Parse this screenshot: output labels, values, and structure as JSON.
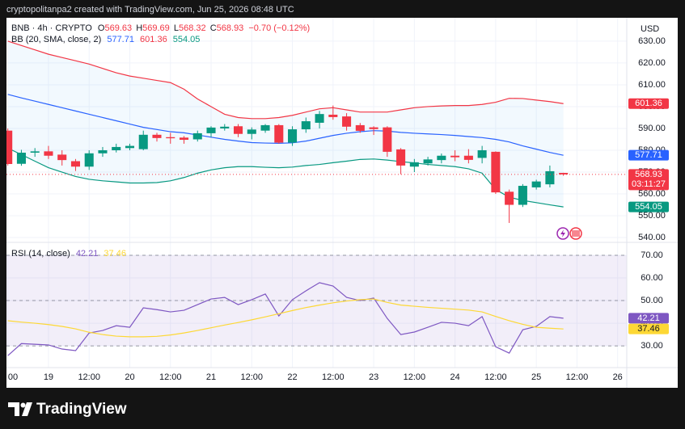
{
  "header": {
    "text": "cryptopolitanpa2 created with TradingView.com, Jun 25, 2026 08:48 UTC"
  },
  "footer": {
    "brand": "TradingView"
  },
  "chart_data": [
    {
      "type": "candlestick",
      "symbol": "BNB · 4h · CRYPTO",
      "ohlc_labels": [
        "O",
        "H",
        "L",
        "C"
      ],
      "change": "−0.70 (−0.12%)",
      "indicator": "BB (20, SMA, close, 2)",
      "currency": "USD",
      "countdown": "03:11:27",
      "up_color": "#089981",
      "down_color": "#f23645",
      "x": [
        -12,
        -8,
        -4,
        0,
        4,
        8,
        12,
        16,
        20,
        24,
        28,
        32,
        36,
        40,
        44,
        48,
        52,
        56,
        60,
        64,
        68,
        72,
        76,
        80,
        84,
        88,
        92,
        96,
        100,
        104,
        108,
        112,
        116,
        120,
        124,
        128,
        132,
        136,
        140,
        144,
        148,
        152
      ],
      "open": [
        589,
        573.8,
        578.9,
        579.5,
        578,
        575,
        572.5,
        578.6,
        580,
        581,
        580.5,
        587.1,
        586,
        585.8,
        585,
        587.8,
        590,
        591,
        587.5,
        589,
        591.5,
        583.5,
        589.6,
        592.6,
        596.3,
        595.5,
        591.5,
        590.5,
        590.5,
        580.4,
        572.5,
        574,
        575.5,
        577.5,
        577.5,
        576.5,
        579.3,
        561,
        555,
        563,
        564.4,
        569.63
      ],
      "high": [
        590,
        580.2,
        581,
        582,
        580,
        576,
        580,
        581.5,
        583,
        583,
        589,
        588,
        588,
        586.5,
        589,
        591,
        592,
        592,
        590.5,
        592,
        592,
        591,
        595,
        598,
        600.5,
        597,
        592.5,
        591,
        591,
        581,
        576,
        577,
        578.5,
        580,
        580.5,
        582,
        579.5,
        562,
        564.5,
        566.5,
        573,
        569.69
      ],
      "low": [
        573,
        572.9,
        577,
        576,
        573,
        570.5,
        571,
        577,
        579,
        580,
        580,
        584,
        583,
        583,
        584,
        586,
        589,
        586,
        585,
        588,
        583,
        582,
        588,
        590,
        594,
        589,
        588,
        587,
        577,
        569,
        570,
        573,
        574,
        575,
        574,
        574,
        560,
        546.7,
        554,
        562,
        563,
        568.32
      ],
      "close": [
        573.7,
        578.9,
        579.5,
        577.5,
        575.5,
        572.5,
        578.6,
        580,
        581.5,
        582,
        587.1,
        585.6,
        585.5,
        584.8,
        587.8,
        590.4,
        590.8,
        587.5,
        589.5,
        591.5,
        583.5,
        589.6,
        593.3,
        596.6,
        595.2,
        590.8,
        588.9,
        589.7,
        579.3,
        573,
        574.5,
        575.8,
        577.5,
        576.8,
        575.6,
        580,
        560.7,
        555,
        563.7,
        565.7,
        570.4,
        568.93
      ],
      "series": [
        {
          "name": "basis",
          "color": "#2962ff",
          "values": [
            605.6,
            604,
            602.5,
            601,
            599.5,
            598,
            596.5,
            595,
            593.5,
            592,
            590.5,
            589.5,
            588.5,
            588,
            587,
            586,
            585,
            584.2,
            583.5,
            583.3,
            583.2,
            583.4,
            584.2,
            585.5,
            586.8,
            587.8,
            588.5,
            589,
            588.8,
            588.2,
            587.8,
            587.5,
            587.2,
            586.8,
            586.3,
            585.8,
            585,
            583.8,
            582,
            580.5,
            579,
            577.71
          ]
        },
        {
          "name": "upper",
          "color": "#f23645",
          "values": [
            630,
            628,
            626,
            624,
            622.5,
            621,
            619.5,
            617.5,
            615.5,
            614,
            613,
            612,
            611,
            608,
            603.5,
            600,
            596.5,
            595,
            594.5,
            594.5,
            595,
            596,
            597.5,
            599,
            599.5,
            598.5,
            597.5,
            597.5,
            597.5,
            598.5,
            599.5,
            600,
            600.3,
            600.5,
            600.5,
            601,
            602,
            603.8,
            603.7,
            603,
            602.3,
            601.36
          ]
        },
        {
          "name": "lower",
          "color": "#089981",
          "values": [
            581,
            578,
            575,
            572,
            570,
            568,
            566.7,
            566,
            565.5,
            565,
            565,
            565.2,
            566,
            567.5,
            569.5,
            571,
            572,
            572.5,
            572.5,
            572.2,
            572,
            572.3,
            573,
            573.5,
            574.3,
            575,
            575.8,
            576,
            575.5,
            574.8,
            574.2,
            573.5,
            573,
            572.5,
            571.5,
            569.5,
            562,
            558.5,
            557,
            556,
            555,
            554.05
          ]
        }
      ],
      "xlim": [
        -12.4,
        170.7
      ],
      "ylim": [
        537.8,
        640.7
      ],
      "yticks": [
        {
          "value": 540,
          "label": "540.00"
        },
        {
          "value": 550,
          "label": "550.00"
        },
        {
          "value": 560,
          "label": "560.00"
        },
        {
          "value": 570,
          "label": "570.00"
        },
        {
          "value": 580,
          "label": "580.00"
        },
        {
          "value": 590,
          "label": "590.00"
        },
        {
          "value": 600,
          "label": "600.00"
        },
        {
          "value": 610,
          "label": "610.00"
        },
        {
          "value": 620,
          "label": "620.00"
        },
        {
          "value": 630,
          "label": "630.00"
        }
      ],
      "grid": true
    },
    {
      "type": "line",
      "indicator": "RSI (14, close)",
      "x": [
        -12,
        -8,
        -4,
        0,
        4,
        8,
        12,
        16,
        20,
        24,
        28,
        32,
        36,
        40,
        44,
        48,
        52,
        56,
        60,
        64,
        68,
        72,
        76,
        80,
        84,
        88,
        92,
        96,
        100,
        104,
        108,
        112,
        116,
        120,
        124,
        128,
        132,
        136,
        140,
        144,
        148,
        152
      ],
      "series": [
        {
          "name": "RSI",
          "color": "#7e57c2",
          "values": [
            25.7,
            31,
            30.7,
            30.4,
            28.6,
            27.9,
            35.7,
            36.8,
            38.9,
            38.2,
            46.8,
            46,
            45,
            45.7,
            48.2,
            50.7,
            51.4,
            48.2,
            50.4,
            52.9,
            43.2,
            50.4,
            54.3,
            57.9,
            56.4,
            51.4,
            50,
            51.1,
            42.1,
            35,
            36.1,
            38.2,
            40.4,
            40,
            38.9,
            42.9,
            29.6,
            26.8,
            37.1,
            38.6,
            42.9,
            42.21
          ]
        },
        {
          "name": "MA",
          "color": "#fdd835",
          "values": [
            41.1,
            40.5,
            40,
            39.4,
            38.6,
            37.5,
            36,
            35,
            34.3,
            34,
            34,
            34.2,
            34.8,
            35.7,
            36.8,
            38,
            39.2,
            40.3,
            41.5,
            42.8,
            44.2,
            45.6,
            46.9,
            48,
            49,
            49.8,
            50.4,
            50.7,
            49.2,
            48,
            47.5,
            47,
            46.6,
            46.2,
            45.8,
            45,
            43,
            41.1,
            39.5,
            38.2,
            37.8,
            37.46
          ]
        }
      ],
      "band": [
        30,
        70
      ],
      "levels": [
        70,
        50,
        30
      ],
      "xlim": [
        -12.4,
        170.7
      ],
      "ylim": [
        20.4,
        75.7
      ],
      "yticks": [
        {
          "value": 30,
          "label": "30.00"
        },
        {
          "value": 40,
          "label": "40.00"
        },
        {
          "value": 50,
          "label": "50.00"
        },
        {
          "value": 60,
          "label": "60.00"
        },
        {
          "value": 70,
          "label": "70.00"
        }
      ],
      "xticks": [
        {
          "value": -12,
          "label": "00"
        },
        {
          "value": 0,
          "label": "19"
        },
        {
          "value": 12,
          "label": "12:00"
        },
        {
          "value": 24,
          "label": "20"
        },
        {
          "value": 36,
          "label": "12:00"
        },
        {
          "value": 48,
          "label": "21"
        },
        {
          "value": 60,
          "label": "12:00"
        },
        {
          "value": 72,
          "label": "22"
        },
        {
          "value": 84,
          "label": "12:00"
        },
        {
          "value": 96,
          "label": "23"
        },
        {
          "value": 108,
          "label": "12:00"
        },
        {
          "value": 120,
          "label": "24"
        },
        {
          "value": 132,
          "label": "12:00"
        },
        {
          "value": 144,
          "label": "25"
        },
        {
          "value": 156,
          "label": "12:00"
        },
        {
          "value": 168,
          "label": "26"
        }
      ],
      "grid": true
    }
  ]
}
